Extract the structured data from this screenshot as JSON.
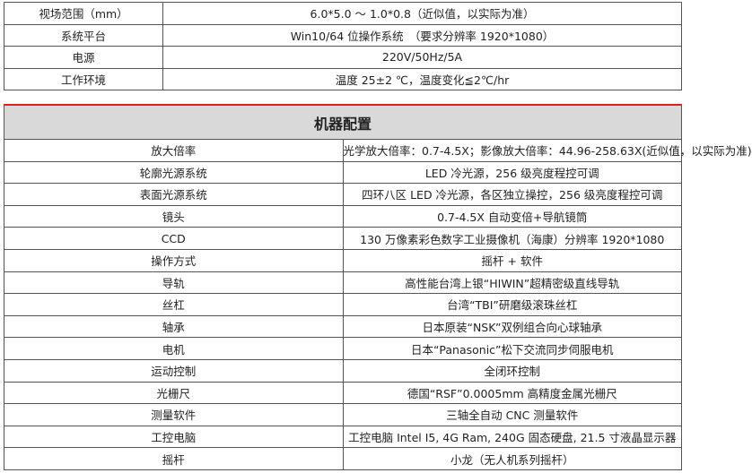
{
  "env_table": [
    {
      "label": "视场范围（mm）",
      "value": "6.0*5.0 ～ 1.0*0.8（近似值，以实际为准）"
    },
    {
      "label": "系统平台",
      "value": "Win10/64 位操作系统　（要求分辨率 1920*1080）"
    },
    {
      "label": "电源",
      "value": "220V/50Hz/5A"
    },
    {
      "label": "工作环境",
      "value": "温度 25±2 ℃，温度变化≦2℃/hr"
    }
  ],
  "config_table": {
    "title": "机器配置",
    "accent_color": "#e02020",
    "rows": [
      {
        "label": "放大倍率",
        "value": "光学放大倍率：0.7-4.5X；影像放大倍率：44.96-258.63X(近似值，以实际为准)"
      },
      {
        "label": "轮廓光源系统",
        "value": "LED 冷光源，256 级亮度程控可调"
      },
      {
        "label": "表面光源系统",
        "value": "四环八区 LED 冷光源，各区独立操控，256 级亮度程控可调"
      },
      {
        "label": "镜头",
        "value": "0.7-4.5X 自动变倍+导航镜筒"
      },
      {
        "label": "CCD",
        "value": "130 万像素彩色数字工业摄像机（海康）分辨率 1920*1080"
      },
      {
        "label": "操作方式",
        "value": "摇杆 + 软件"
      },
      {
        "label": "导轨",
        "value": "高性能台湾上银“HIWIN”超精密级直线导轨"
      },
      {
        "label": "丝杠",
        "value": "台湾“TBI”研磨级滚珠丝杠"
      },
      {
        "label": "轴承",
        "value": "日本原装“NSK”双例组合向心球轴承"
      },
      {
        "label": "电机",
        "value": "日本“Panasonic”松下交流同步伺服电机"
      },
      {
        "label": "运动控制",
        "value": "全闭环控制"
      },
      {
        "label": "光栅尺",
        "value": "德国“RSF”0.0005mm 高精度金属光栅尺"
      },
      {
        "label": "测量软件",
        "value": "三轴全自动 CNC 测量软件"
      },
      {
        "label": "工控电脑",
        "value": "工控电脑 Intel I5, 4G Ram, 240G 固态硬盘, 21.5 寸液晶显示器"
      },
      {
        "label": "摇杆",
        "value": "小龙（无人机系列摇杆）"
      }
    ]
  }
}
